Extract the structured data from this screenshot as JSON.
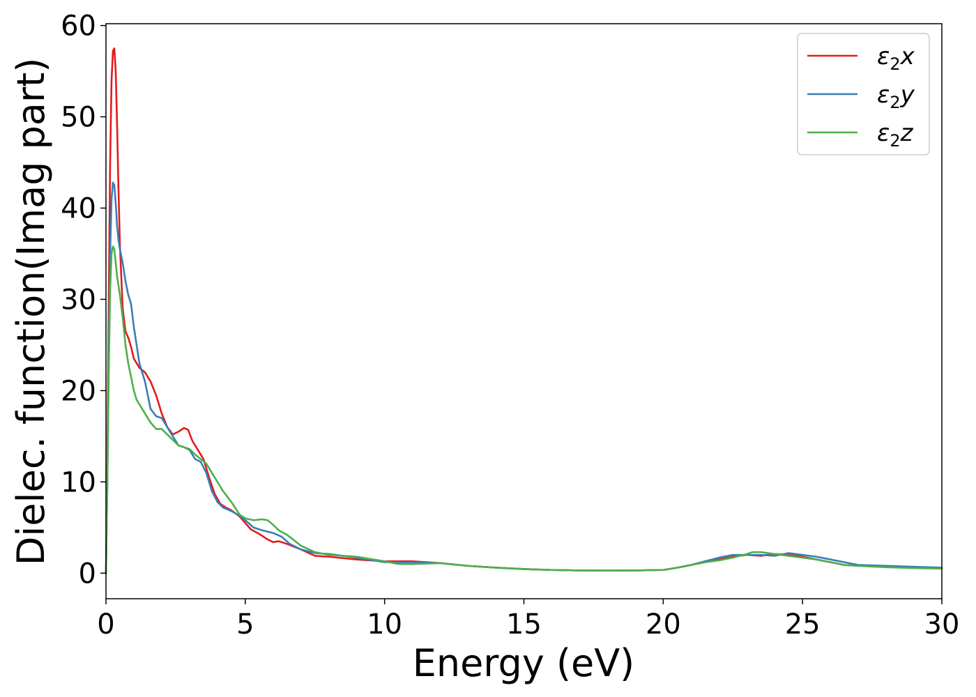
{
  "chart_data": {
    "type": "line",
    "title": "",
    "xlabel": "Energy (eV)",
    "ylabel": "Dielec. function(Imag part)",
    "xlim": [
      0,
      30
    ],
    "ylim": [
      -2.8,
      60.2
    ],
    "xticks": [
      0,
      5,
      10,
      15,
      20,
      25,
      30
    ],
    "yticks": [
      0,
      10,
      20,
      30,
      40,
      50,
      60
    ],
    "grid": false,
    "legend_position": "top-right",
    "series": [
      {
        "name": "ε₂x",
        "legend_base": "ε",
        "legend_sub": "2",
        "legend_var": "x",
        "color": "#e41a1c",
        "x": [
          0,
          0.05,
          0.1,
          0.15,
          0.2,
          0.25,
          0.3,
          0.35,
          0.4,
          0.45,
          0.5,
          0.6,
          0.7,
          0.8,
          0.9,
          1.0,
          1.2,
          1.4,
          1.6,
          1.8,
          2.0,
          2.2,
          2.4,
          2.6,
          2.8,
          2.95,
          3.1,
          3.3,
          3.5,
          3.7,
          3.9,
          4.1,
          4.3,
          4.5,
          4.8,
          5.0,
          5.2,
          5.5,
          5.8,
          6.0,
          6.2,
          6.5,
          7.0,
          7.5,
          8.0,
          9.0,
          10.0,
          11.0,
          12.0,
          13.0,
          14.0,
          15.0,
          16.0,
          17.0,
          18.0,
          19.0,
          20.0,
          20.5,
          21.0,
          21.5,
          22.0,
          22.5,
          23.0,
          23.5,
          24.0,
          24.5,
          25.0,
          25.5,
          26.0,
          26.5,
          27.0,
          28.0,
          29.0,
          30.0
        ],
        "values": [
          0,
          12,
          30,
          45,
          54,
          57.2,
          57.5,
          55,
          49,
          42,
          36,
          29,
          26.5,
          25.8,
          24.8,
          23.5,
          22.5,
          22.0,
          21.0,
          19.5,
          17.5,
          16.0,
          15.2,
          15.5,
          15.9,
          15.7,
          14.5,
          13.5,
          12.5,
          10.5,
          8.7,
          7.6,
          7.2,
          6.9,
          6.2,
          5.5,
          4.8,
          4.3,
          3.7,
          3.4,
          3.5,
          3.2,
          2.6,
          1.9,
          1.8,
          1.5,
          1.3,
          1.3,
          1.1,
          0.8,
          0.6,
          0.45,
          0.35,
          0.3,
          0.28,
          0.3,
          0.35,
          0.6,
          0.9,
          1.2,
          1.5,
          1.8,
          2.0,
          1.9,
          2.1,
          2.0,
          1.8,
          1.5,
          1.2,
          0.9,
          0.8,
          0.7,
          0.6,
          0.55
        ]
      },
      {
        "name": "ε₂y",
        "legend_base": "ε",
        "legend_sub": "2",
        "legend_var": "y",
        "color": "#377eb8",
        "x": [
          0,
          0.05,
          0.1,
          0.15,
          0.2,
          0.25,
          0.3,
          0.35,
          0.4,
          0.45,
          0.5,
          0.6,
          0.7,
          0.8,
          0.9,
          1.0,
          1.1,
          1.2,
          1.4,
          1.6,
          1.8,
          2.0,
          2.2,
          2.4,
          2.6,
          2.8,
          3.0,
          3.2,
          3.4,
          3.6,
          3.8,
          4.0,
          4.2,
          4.5,
          4.8,
          5.0,
          5.3,
          5.6,
          6.0,
          6.3,
          6.6,
          7.0,
          7.5,
          8.0,
          9.0,
          10.0,
          11.0,
          12.0,
          13.0,
          14.0,
          15.0,
          16.0,
          17.0,
          18.0,
          19.0,
          20.0,
          20.5,
          21.0,
          21.5,
          22.0,
          22.5,
          23.0,
          23.5,
          24.0,
          24.5,
          25.0,
          25.5,
          26.0,
          26.5,
          27.0,
          28.0,
          29.0,
          30.0
        ],
        "values": [
          0,
          10,
          24,
          35,
          41,
          42.8,
          42.5,
          40.5,
          38,
          36.5,
          35.5,
          34,
          32,
          30.5,
          29.5,
          27,
          25,
          23,
          21,
          18,
          17.2,
          17.0,
          16,
          15,
          14,
          13.8,
          13.5,
          12.5,
          12.2,
          11,
          9.0,
          7.8,
          7.2,
          6.8,
          6.3,
          5.8,
          5.0,
          4.7,
          4.4,
          4.0,
          3.2,
          2.6,
          2.2,
          2.1,
          1.7,
          1.2,
          1.2,
          1.1,
          0.8,
          0.6,
          0.45,
          0.35,
          0.3,
          0.28,
          0.3,
          0.35,
          0.6,
          0.9,
          1.3,
          1.7,
          2.0,
          2.0,
          2.0,
          1.9,
          2.2,
          2.0,
          1.8,
          1.5,
          1.2,
          0.9,
          0.8,
          0.7,
          0.6
        ]
      },
      {
        "name": "ε₂z",
        "legend_base": "ε",
        "legend_sub": "2",
        "legend_var": "z",
        "color": "#4daf4a",
        "x": [
          0,
          0.05,
          0.1,
          0.15,
          0.2,
          0.25,
          0.3,
          0.35,
          0.4,
          0.45,
          0.5,
          0.6,
          0.7,
          0.8,
          0.9,
          1.0,
          1.1,
          1.2,
          1.4,
          1.6,
          1.8,
          2.0,
          2.2,
          2.4,
          2.6,
          2.8,
          3.0,
          3.2,
          3.4,
          3.6,
          3.8,
          4.0,
          4.2,
          4.5,
          4.8,
          5.0,
          5.3,
          5.6,
          5.8,
          6.0,
          6.2,
          6.5,
          7.0,
          7.5,
          8.0,
          9.0,
          10.0,
          10.5,
          11.0,
          12.0,
          13.0,
          14.0,
          15.0,
          16.0,
          17.0,
          18.0,
          19.0,
          20.0,
          20.5,
          21.0,
          21.5,
          22.0,
          22.5,
          23.0,
          23.2,
          23.5,
          24.0,
          24.5,
          25.0,
          25.5,
          26.0,
          26.5,
          27.0,
          28.0,
          29.0,
          30.0
        ],
        "values": [
          0,
          10,
          22,
          31,
          35,
          35.8,
          35.5,
          34,
          32.5,
          31.5,
          30.5,
          28,
          25,
          23,
          21.5,
          20,
          19,
          18.5,
          17.5,
          16.5,
          15.8,
          15.8,
          15.2,
          14.6,
          14.0,
          13.8,
          13.6,
          13.0,
          12.5,
          12.0,
          11.0,
          10.0,
          9.0,
          7.8,
          6.4,
          6.0,
          5.8,
          5.9,
          5.8,
          5.3,
          4.7,
          4.2,
          3.0,
          2.3,
          2.0,
          1.8,
          1.3,
          1.0,
          1.0,
          1.1,
          0.8,
          0.6,
          0.45,
          0.35,
          0.3,
          0.28,
          0.3,
          0.35,
          0.6,
          0.9,
          1.2,
          1.4,
          1.7,
          2.1,
          2.3,
          2.3,
          2.1,
          1.9,
          1.7,
          1.5,
          1.2,
          0.9,
          0.8,
          0.65,
          0.55,
          0.5
        ]
      }
    ]
  }
}
